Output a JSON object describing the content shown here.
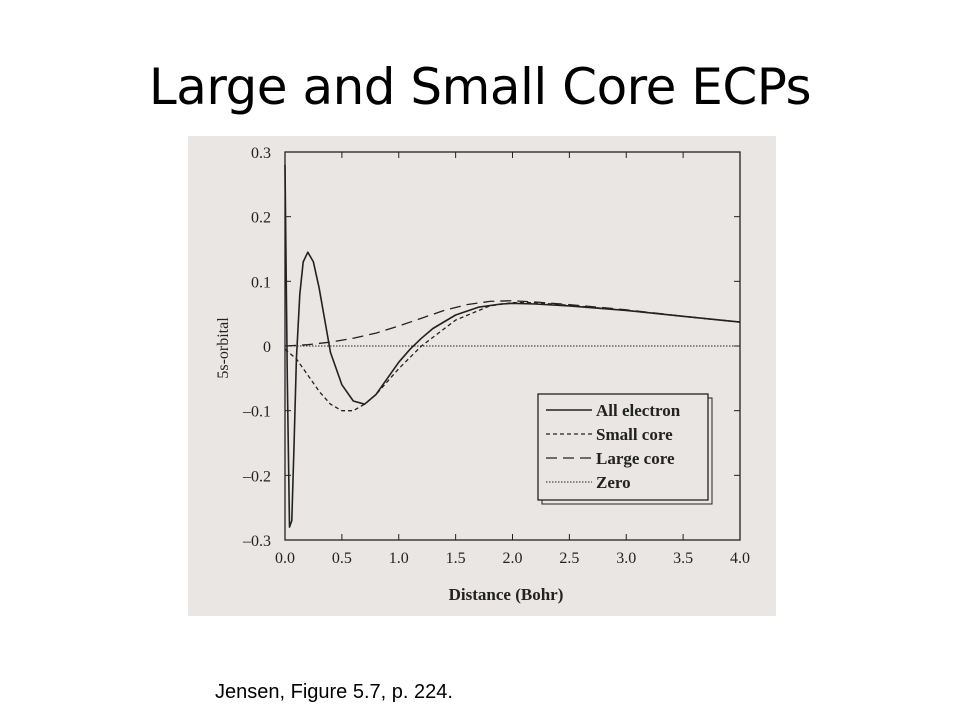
{
  "slide": {
    "title": "Large and Small Core ECPs",
    "caption": "Jensen, Figure 5.7, p. 224."
  },
  "colors": {
    "figure_background": "#e9e6e3",
    "ink": "#222222"
  },
  "chart_data": {
    "type": "line",
    "title": "",
    "xlabel": "Distance (Bohr)",
    "ylabel": "5s-orbital",
    "xlim": [
      0.0,
      4.0
    ],
    "ylim": [
      -0.3,
      0.3
    ],
    "x_ticks": [
      0.0,
      0.5,
      1.0,
      1.5,
      2.0,
      2.5,
      3.0,
      3.5,
      4.0
    ],
    "x_tick_labels": [
      "0.0",
      "0.5",
      "1.0",
      "1.5",
      "2.0",
      "2.5",
      "3.0",
      "3.5",
      "4.0"
    ],
    "y_ticks": [
      0.3,
      0.2,
      0.1,
      0,
      -0.1,
      -0.2,
      -0.3
    ],
    "y_tick_labels": [
      "0.3",
      "0.2",
      "0.1",
      "0",
      "–0.1",
      "–0.2",
      "–0.3"
    ],
    "grid": false,
    "legend_position": "lower-right",
    "series": [
      {
        "name": "All electron",
        "style": "solid",
        "x": [
          0.0,
          0.02,
          0.04,
          0.06,
          0.08,
          0.1,
          0.13,
          0.16,
          0.2,
          0.25,
          0.3,
          0.35,
          0.4,
          0.5,
          0.6,
          0.7,
          0.8,
          0.9,
          1.0,
          1.1,
          1.2,
          1.3,
          1.5,
          1.7,
          1.9,
          2.0,
          2.2,
          2.5,
          3.0,
          3.5,
          4.0
        ],
        "y": [
          0.28,
          -0.05,
          -0.28,
          -0.27,
          -0.15,
          -0.02,
          0.08,
          0.13,
          0.145,
          0.13,
          0.09,
          0.04,
          -0.01,
          -0.06,
          -0.085,
          -0.09,
          -0.075,
          -0.05,
          -0.025,
          -0.005,
          0.012,
          0.027,
          0.048,
          0.06,
          0.065,
          0.066,
          0.065,
          0.062,
          0.055,
          0.046,
          0.037
        ]
      },
      {
        "name": "Small core",
        "style": "short-dash",
        "x": [
          0.0,
          0.1,
          0.2,
          0.3,
          0.4,
          0.5,
          0.6,
          0.7,
          0.8,
          0.9,
          1.0,
          1.2,
          1.5,
          1.8,
          2.0,
          2.2,
          2.5,
          3.0,
          3.5,
          4.0
        ],
        "y": [
          -0.005,
          -0.02,
          -0.045,
          -0.07,
          -0.09,
          -0.1,
          -0.1,
          -0.09,
          -0.075,
          -0.055,
          -0.035,
          0.0,
          0.04,
          0.062,
          0.067,
          0.067,
          0.063,
          0.055,
          0.046,
          0.037
        ]
      },
      {
        "name": "Large core",
        "style": "long-dash",
        "x": [
          0.0,
          0.2,
          0.4,
          0.6,
          0.8,
          1.0,
          1.2,
          1.4,
          1.6,
          1.8,
          2.0,
          2.2,
          2.5,
          3.0,
          3.5,
          4.0
        ],
        "y": [
          0.0,
          0.002,
          0.006,
          0.012,
          0.02,
          0.031,
          0.043,
          0.055,
          0.064,
          0.069,
          0.07,
          0.068,
          0.064,
          0.056,
          0.046,
          0.037
        ]
      },
      {
        "name": "Zero",
        "style": "dotted",
        "x": [
          0.0,
          4.0
        ],
        "y": [
          0.0,
          0.0
        ]
      }
    ]
  }
}
